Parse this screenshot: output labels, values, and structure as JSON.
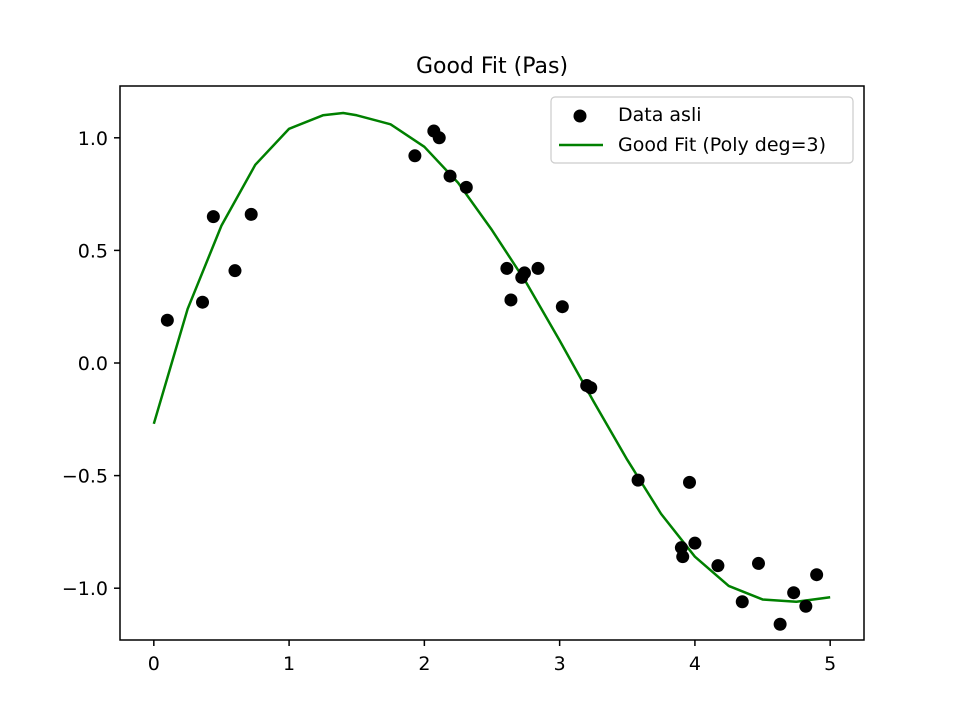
{
  "chart_data": {
    "type": "scatter",
    "title": "Good Fit (Pas)",
    "xlabel": "",
    "ylabel": "",
    "xlim": [
      -0.25,
      5.25
    ],
    "ylim": [
      -1.23,
      1.23
    ],
    "grid": false,
    "legend_position": "top-right",
    "x_ticks": [
      {
        "value": 0,
        "label": "0"
      },
      {
        "value": 1,
        "label": "1"
      },
      {
        "value": 2,
        "label": "2"
      },
      {
        "value": 3,
        "label": "3"
      },
      {
        "value": 4,
        "label": "4"
      },
      {
        "value": 5,
        "label": "5"
      }
    ],
    "y_ticks": [
      {
        "value": -1.0,
        "label": "−1.0"
      },
      {
        "value": -0.5,
        "label": "−0.5"
      },
      {
        "value": 0.0,
        "label": "0.0"
      },
      {
        "value": 0.5,
        "label": "0.5"
      },
      {
        "value": 1.0,
        "label": "1.0"
      }
    ],
    "series": [
      {
        "name": "Data asli",
        "kind": "scatter",
        "color": "#000000",
        "points": [
          {
            "x": 0.1,
            "y": 0.19
          },
          {
            "x": 0.36,
            "y": 0.27
          },
          {
            "x": 0.44,
            "y": 0.65
          },
          {
            "x": 0.6,
            "y": 0.41
          },
          {
            "x": 0.72,
            "y": 0.66
          },
          {
            "x": 1.93,
            "y": 0.92
          },
          {
            "x": 2.07,
            "y": 1.03
          },
          {
            "x": 2.11,
            "y": 1.0
          },
          {
            "x": 2.19,
            "y": 0.83
          },
          {
            "x": 2.31,
            "y": 0.78
          },
          {
            "x": 2.61,
            "y": 0.42
          },
          {
            "x": 2.64,
            "y": 0.28
          },
          {
            "x": 2.72,
            "y": 0.38
          },
          {
            "x": 2.74,
            "y": 0.4
          },
          {
            "x": 2.84,
            "y": 0.42
          },
          {
            "x": 3.02,
            "y": 0.25
          },
          {
            "x": 3.2,
            "y": -0.1
          },
          {
            "x": 3.23,
            "y": -0.11
          },
          {
            "x": 3.58,
            "y": -0.52
          },
          {
            "x": 3.9,
            "y": -0.82
          },
          {
            "x": 3.91,
            "y": -0.86
          },
          {
            "x": 3.96,
            "y": -0.53
          },
          {
            "x": 4.0,
            "y": -0.8
          },
          {
            "x": 4.17,
            "y": -0.9
          },
          {
            "x": 4.35,
            "y": -1.06
          },
          {
            "x": 4.47,
            "y": -0.89
          },
          {
            "x": 4.63,
            "y": -1.16
          },
          {
            "x": 4.73,
            "y": -1.02
          },
          {
            "x": 4.82,
            "y": -1.08
          },
          {
            "x": 4.9,
            "y": -0.94
          }
        ]
      },
      {
        "name": "Good Fit (Poly deg=3)",
        "kind": "line",
        "color": "#008000",
        "points": [
          {
            "x": 0.0,
            "y": -0.27
          },
          {
            "x": 0.25,
            "y": 0.24
          },
          {
            "x": 0.5,
            "y": 0.61
          },
          {
            "x": 0.75,
            "y": 0.88
          },
          {
            "x": 1.0,
            "y": 1.04
          },
          {
            "x": 1.25,
            "y": 1.1
          },
          {
            "x": 1.4,
            "y": 1.11
          },
          {
            "x": 1.5,
            "y": 1.1
          },
          {
            "x": 1.75,
            "y": 1.06
          },
          {
            "x": 2.0,
            "y": 0.96
          },
          {
            "x": 2.25,
            "y": 0.8
          },
          {
            "x": 2.5,
            "y": 0.59
          },
          {
            "x": 2.75,
            "y": 0.36
          },
          {
            "x": 3.0,
            "y": 0.1
          },
          {
            "x": 3.25,
            "y": -0.17
          },
          {
            "x": 3.5,
            "y": -0.43
          },
          {
            "x": 3.75,
            "y": -0.67
          },
          {
            "x": 4.0,
            "y": -0.86
          },
          {
            "x": 4.25,
            "y": -0.99
          },
          {
            "x": 4.5,
            "y": -1.05
          },
          {
            "x": 4.75,
            "y": -1.06
          },
          {
            "x": 5.0,
            "y": -1.04
          }
        ]
      }
    ]
  }
}
